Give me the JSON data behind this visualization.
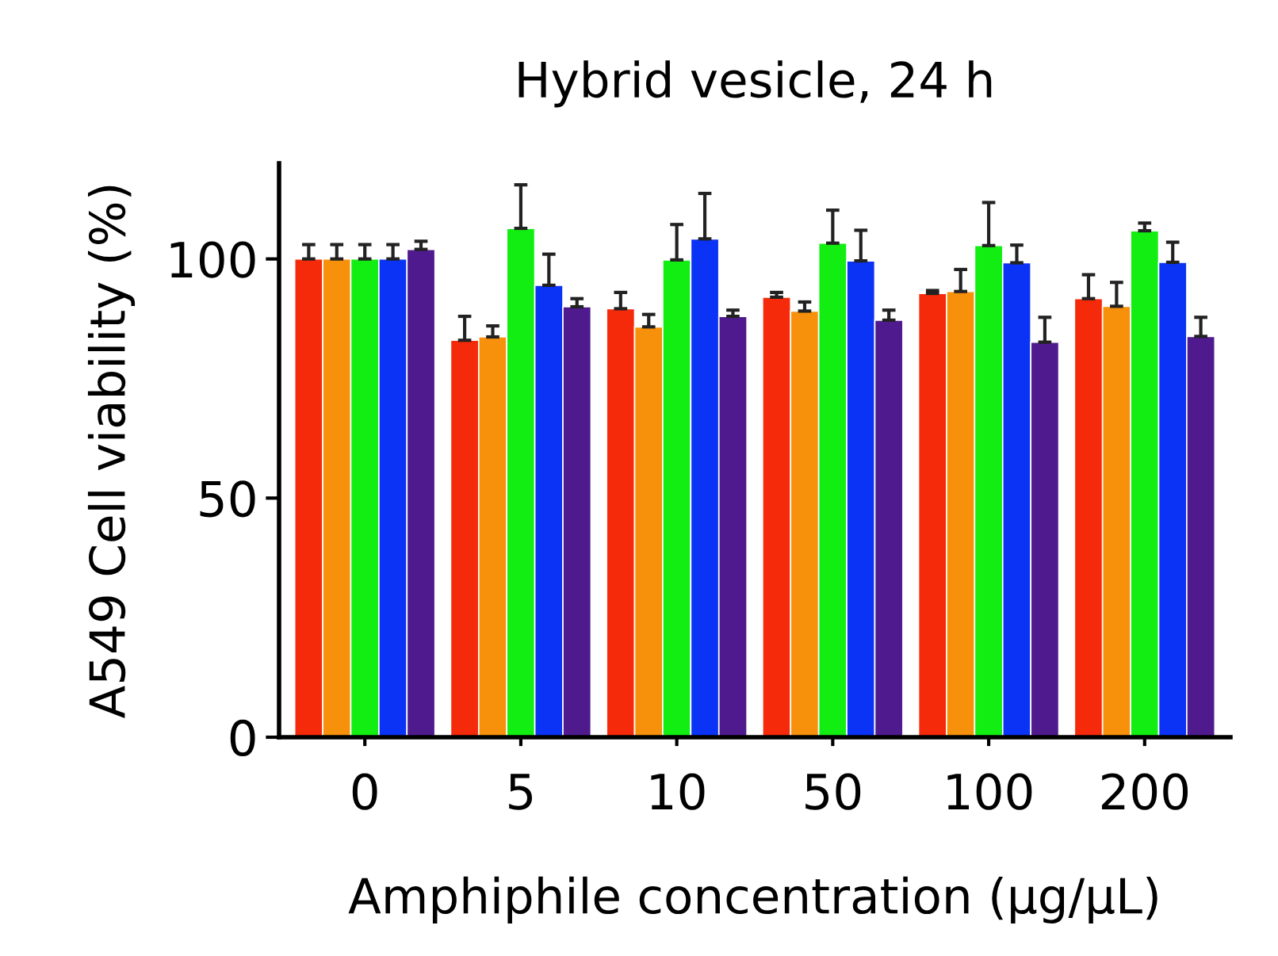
{
  "chart_data": {
    "type": "bar",
    "title": "Hybrid vesicle, 24 h",
    "xlabel": "Amphiphile concentration (μg/μL)",
    "ylabel": "A549 Cell viability (%)",
    "categories": [
      "0",
      "5",
      "10",
      "50",
      "100",
      "200"
    ],
    "series": [
      {
        "color": "#f52a0a",
        "values": [
          100,
          83,
          89.6,
          92,
          92.8,
          91.7
        ],
        "errors": [
          [
            100,
            103
          ],
          [
            83,
            88
          ],
          [
            89.6,
            93
          ],
          [
            92,
            93
          ],
          [
            92.8,
            93.4
          ],
          [
            91.7,
            96.7
          ]
        ]
      },
      {
        "color": "#f7900a",
        "values": [
          100,
          83.7,
          85.8,
          89.1,
          93.2,
          90.1
        ],
        "errors": [
          [
            100,
            103
          ],
          [
            83.7,
            86
          ],
          [
            85.8,
            88.4
          ],
          [
            89.1,
            91
          ],
          [
            93.2,
            97.8
          ],
          [
            90.1,
            95.1
          ]
        ]
      },
      {
        "color": "#12ee12",
        "values": [
          100,
          106.4,
          99.8,
          103.3,
          102.8,
          105.9
        ],
        "errors": [
          [
            100,
            103
          ],
          [
            106.4,
            115.5
          ],
          [
            99.8,
            107.2
          ],
          [
            103.3,
            110.2
          ],
          [
            102.8,
            111.8
          ],
          [
            105.9,
            107.5
          ]
        ]
      },
      {
        "color": "#0a33f5",
        "values": [
          100,
          94.5,
          104.2,
          99.6,
          99.2,
          99.3
        ],
        "errors": [
          [
            100,
            103
          ],
          [
            94.5,
            101
          ],
          [
            104.2,
            113.7
          ],
          [
            99.6,
            106
          ],
          [
            99.2,
            102.9
          ],
          [
            99.3,
            103.5
          ]
        ]
      },
      {
        "color": "#501a8f",
        "values": [
          102,
          90,
          88,
          87.2,
          82.6,
          83.8
        ],
        "errors": [
          [
            102,
            103.7
          ],
          [
            90,
            91.7
          ],
          [
            88,
            89.3
          ],
          [
            87.2,
            89.3
          ],
          [
            82.6,
            87.8
          ],
          [
            83.8,
            87.8
          ]
        ]
      }
    ],
    "ylim": [
      0,
      120
    ],
    "yticks": [
      0,
      50,
      100
    ],
    "grid": false,
    "legend": false
  }
}
